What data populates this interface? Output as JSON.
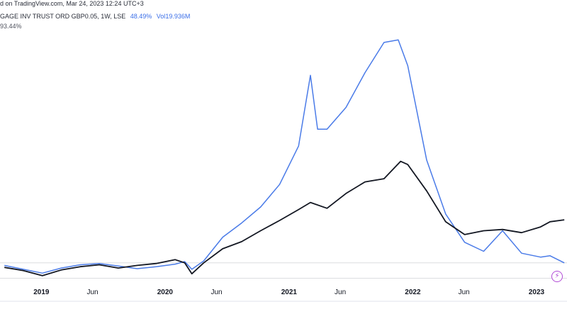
{
  "header": {
    "published": "d on TradingView.com, Mar 24, 2023 12:24 UTC+3",
    "symbol": "GAGE INV TRUST ORD GBP0.05, 1W, LSE",
    "symbol_change": "48.49%",
    "volume_label": "Vol",
    "volume_value": "19.936M",
    "compare_change": "93.44%"
  },
  "icons": {
    "flash": "flash-icon"
  },
  "colors": {
    "blue_series": "#4a7be8",
    "black_series": "#131722",
    "grid": "#dcdde0",
    "background": "#ffffff"
  },
  "chart_data": {
    "type": "line",
    "x_ticks": [
      "2019",
      "Jun",
      "2020",
      "Jun",
      "2021",
      "Jun",
      "2022",
      "Jun",
      "2023"
    ],
    "series": [
      {
        "color": "#4a7be8",
        "points": [
          [
            "2018-09-14",
            -4
          ],
          [
            "2018-11-09",
            -10
          ],
          [
            "2019-01-04",
            -16
          ],
          [
            "2019-03-01",
            -8
          ],
          [
            "2019-04-26",
            -3
          ],
          [
            "2019-06-21",
            -1
          ],
          [
            "2019-08-16",
            -5
          ],
          [
            "2019-10-11",
            -9
          ],
          [
            "2019-12-06",
            -6
          ],
          [
            "2020-01-31",
            -2
          ],
          [
            "2020-02-28",
            2
          ],
          [
            "2020-03-20",
            -10
          ],
          [
            "2020-04-24",
            3
          ],
          [
            "2020-06-19",
            40
          ],
          [
            "2020-08-14",
            62
          ],
          [
            "2020-10-09",
            87
          ],
          [
            "2020-12-04",
            122
          ],
          [
            "2021-01-29",
            182
          ],
          [
            "2021-03-05",
            292
          ],
          [
            "2021-03-26",
            208
          ],
          [
            "2021-04-23",
            208
          ],
          [
            "2021-06-18",
            242
          ],
          [
            "2021-08-13",
            296
          ],
          [
            "2021-10-08",
            343
          ],
          [
            "2021-11-19",
            347
          ],
          [
            "2021-12-17",
            307
          ],
          [
            "2022-02-11",
            160
          ],
          [
            "2022-04-08",
            76
          ],
          [
            "2022-06-03",
            32
          ],
          [
            "2022-07-29",
            18
          ],
          [
            "2022-09-23",
            50
          ],
          [
            "2022-11-18",
            15
          ],
          [
            "2023-01-13",
            9
          ],
          [
            "2023-02-10",
            11
          ],
          [
            "2023-03-24",
            0
          ]
        ]
      },
      {
        "color": "#131722",
        "points": [
          [
            "2018-09-14",
            -7
          ],
          [
            "2018-11-09",
            -12
          ],
          [
            "2019-01-04",
            -20
          ],
          [
            "2019-03-01",
            -11
          ],
          [
            "2019-04-26",
            -6
          ],
          [
            "2019-06-21",
            -3
          ],
          [
            "2019-08-16",
            -8
          ],
          [
            "2019-10-11",
            -4
          ],
          [
            "2019-12-06",
            -1
          ],
          [
            "2020-01-31",
            5
          ],
          [
            "2020-02-28",
            0
          ],
          [
            "2020-03-20",
            -17
          ],
          [
            "2020-04-24",
            0
          ],
          [
            "2020-06-19",
            22
          ],
          [
            "2020-08-14",
            33
          ],
          [
            "2020-10-09",
            50
          ],
          [
            "2020-12-04",
            66
          ],
          [
            "2021-01-29",
            83
          ],
          [
            "2021-03-05",
            94
          ],
          [
            "2021-04-23",
            85
          ],
          [
            "2021-06-18",
            108
          ],
          [
            "2021-08-13",
            126
          ],
          [
            "2021-10-08",
            131
          ],
          [
            "2021-11-26",
            158
          ],
          [
            "2021-12-17",
            153
          ],
          [
            "2022-02-11",
            112
          ],
          [
            "2022-04-08",
            64
          ],
          [
            "2022-06-03",
            44
          ],
          [
            "2022-07-29",
            50
          ],
          [
            "2022-09-23",
            52
          ],
          [
            "2022-11-18",
            47
          ],
          [
            "2023-01-13",
            56
          ],
          [
            "2023-02-10",
            64
          ],
          [
            "2023-03-24",
            67
          ]
        ]
      }
    ],
    "ylim": [
      -30,
      365
    ],
    "xlim": [
      "2018-09-01",
      "2023-04-01"
    ],
    "grid": "horizontal",
    "legend": "none"
  }
}
